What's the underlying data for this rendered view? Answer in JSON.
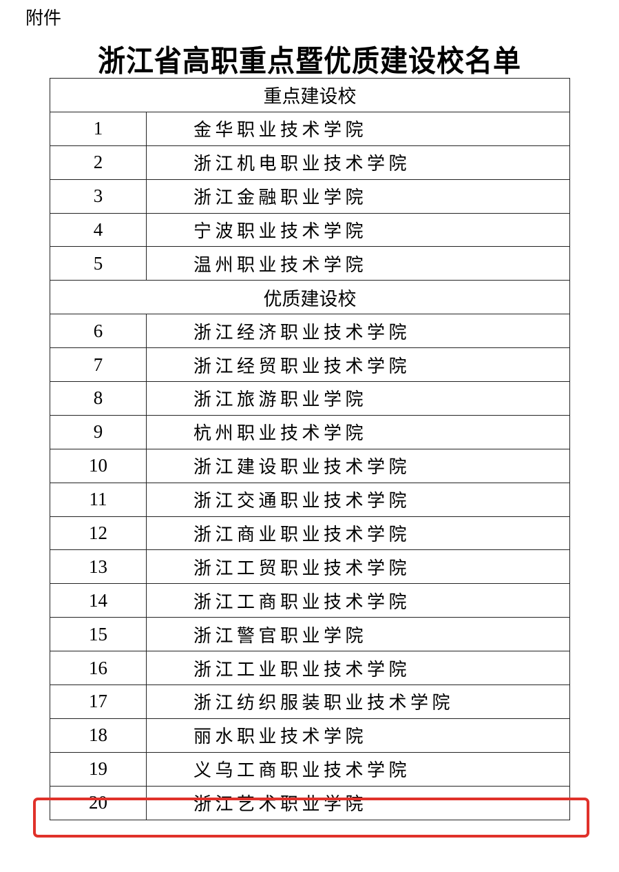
{
  "attachment_label": "附件",
  "title": "浙江省高职重点暨优质建设校名单",
  "sections": [
    {
      "heading": "重点建设校",
      "rows": [
        {
          "no": "1",
          "name": "金华职业技术学院"
        },
        {
          "no": "2",
          "name": "浙江机电职业技术学院"
        },
        {
          "no": "3",
          "name": "浙江金融职业学院"
        },
        {
          "no": "4",
          "name": "宁波职业技术学院"
        },
        {
          "no": "5",
          "name": "温州职业技术学院"
        }
      ]
    },
    {
      "heading": "优质建设校",
      "rows": [
        {
          "no": "6",
          "name": "浙江经济职业技术学院"
        },
        {
          "no": "7",
          "name": "浙江经贸职业技术学院"
        },
        {
          "no": "8",
          "name": "浙江旅游职业学院"
        },
        {
          "no": "9",
          "name": "杭州职业技术学院"
        },
        {
          "no": "10",
          "name": "浙江建设职业技术学院"
        },
        {
          "no": "11",
          "name": "浙江交通职业技术学院"
        },
        {
          "no": "12",
          "name": "浙江商业职业技术学院"
        },
        {
          "no": "13",
          "name": "浙江工贸职业技术学院"
        },
        {
          "no": "14",
          "name": "浙江工商职业技术学院"
        },
        {
          "no": "15",
          "name": "浙江警官职业学院"
        },
        {
          "no": "16",
          "name": "浙江工业职业技术学院"
        },
        {
          "no": "17",
          "name": "浙江纺织服装职业技术学院"
        },
        {
          "no": "18",
          "name": "丽水职业技术学院"
        },
        {
          "no": "19",
          "name": "义乌工商职业技术学院"
        },
        {
          "no": "20",
          "name": "浙江艺术职业学院"
        }
      ]
    }
  ],
  "highlighted_row_no": "20",
  "highlight_color": "#e0312a"
}
